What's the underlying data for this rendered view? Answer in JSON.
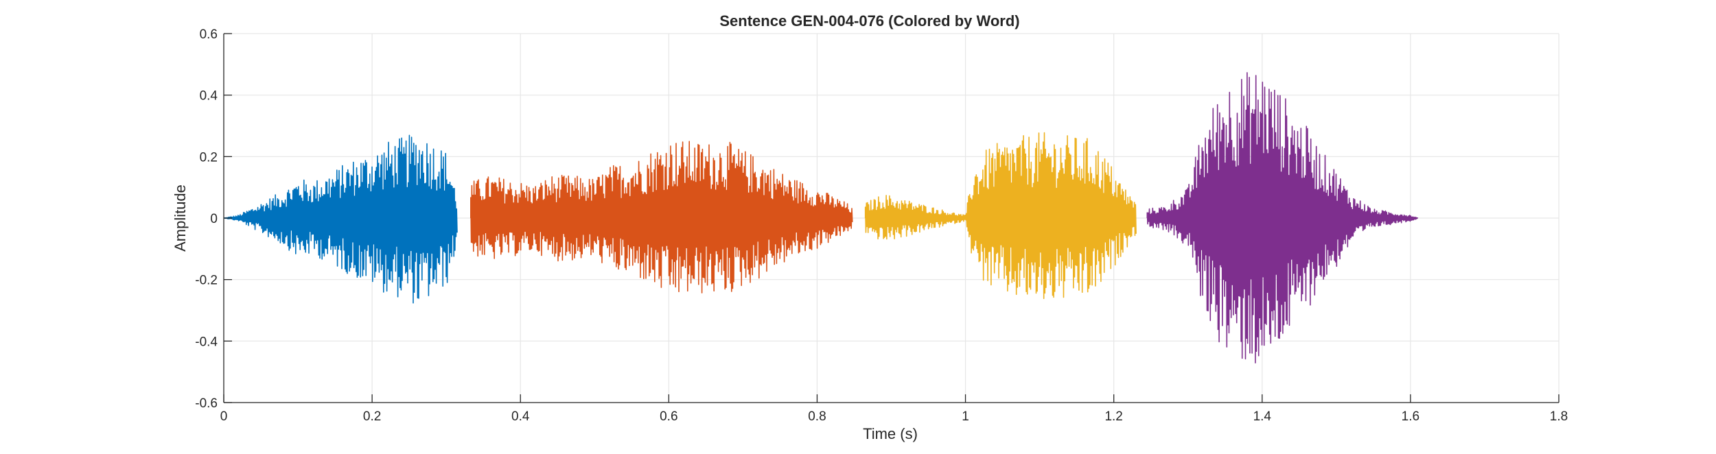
{
  "chart_data": {
    "type": "line",
    "title": "Sentence GEN-004-076 (Colored by Word)",
    "xlabel": "Time (s)",
    "ylabel": "Amplitude",
    "xlim": [
      0,
      1.8
    ],
    "ylim": [
      -0.6,
      0.6
    ],
    "xticks": [
      0,
      0.2,
      0.4,
      0.6,
      0.8,
      1,
      1.2,
      1.4,
      1.6,
      1.8
    ],
    "xtick_labels": [
      "0",
      "0.2",
      "0.4",
      "0.6",
      "0.8",
      "1",
      "1.2",
      "1.4",
      "1.6",
      "1.8"
    ],
    "yticks": [
      -0.6,
      -0.4,
      -0.2,
      0,
      0.2,
      0.4,
      0.6
    ],
    "ytick_labels": [
      "-0.6",
      "-0.4",
      "-0.2",
      "0",
      "0.2",
      "0.4",
      "0.6"
    ],
    "grid": true,
    "legend": false,
    "series": [
      {
        "color": "#0072BD",
        "start": 0.0,
        "end": 0.315,
        "envelope": [
          [
            0.0,
            0.0
          ],
          [
            0.02,
            0.01
          ],
          [
            0.05,
            0.05
          ],
          [
            0.08,
            0.09
          ],
          [
            0.1,
            0.13
          ],
          [
            0.12,
            0.12
          ],
          [
            0.15,
            0.16
          ],
          [
            0.18,
            0.2
          ],
          [
            0.2,
            0.22
          ],
          [
            0.22,
            0.25
          ],
          [
            0.25,
            0.27
          ],
          [
            0.26,
            0.29
          ],
          [
            0.28,
            0.26
          ],
          [
            0.3,
            0.22
          ],
          [
            0.31,
            0.13
          ],
          [
            0.315,
            0.05
          ]
        ]
      },
      {
        "color": "#D95319",
        "start": 0.333,
        "end": 0.848,
        "envelope": [
          [
            0.333,
            0.12
          ],
          [
            0.36,
            0.14
          ],
          [
            0.4,
            0.12
          ],
          [
            0.42,
            0.11
          ],
          [
            0.44,
            0.14
          ],
          [
            0.47,
            0.14
          ],
          [
            0.5,
            0.13
          ],
          [
            0.52,
            0.17
          ],
          [
            0.56,
            0.2
          ],
          [
            0.6,
            0.26
          ],
          [
            0.64,
            0.25
          ],
          [
            0.68,
            0.25
          ],
          [
            0.72,
            0.2
          ],
          [
            0.76,
            0.14
          ],
          [
            0.8,
            0.1
          ],
          [
            0.84,
            0.05
          ],
          [
            0.848,
            0.03
          ]
        ]
      },
      {
        "color": "#EDB120",
        "start": 0.865,
        "end": 1.23,
        "envelope": [
          [
            0.865,
            0.05
          ],
          [
            0.89,
            0.08
          ],
          [
            0.92,
            0.06
          ],
          [
            0.95,
            0.04
          ],
          [
            0.98,
            0.02
          ],
          [
            1.0,
            0.01
          ],
          [
            1.01,
            0.16
          ],
          [
            1.03,
            0.23
          ],
          [
            1.06,
            0.26
          ],
          [
            1.1,
            0.28
          ],
          [
            1.14,
            0.27
          ],
          [
            1.17,
            0.26
          ],
          [
            1.19,
            0.2
          ],
          [
            1.21,
            0.12
          ],
          [
            1.23,
            0.05
          ]
        ]
      },
      {
        "color": "#7E2F8E",
        "start": 1.245,
        "end": 1.61,
        "envelope": [
          [
            1.245,
            0.03
          ],
          [
            1.27,
            0.04
          ],
          [
            1.3,
            0.1
          ],
          [
            1.32,
            0.3
          ],
          [
            1.35,
            0.45
          ],
          [
            1.38,
            0.48
          ],
          [
            1.4,
            0.5
          ],
          [
            1.43,
            0.4
          ],
          [
            1.46,
            0.3
          ],
          [
            1.48,
            0.22
          ],
          [
            1.5,
            0.16
          ],
          [
            1.52,
            0.08
          ],
          [
            1.55,
            0.03
          ],
          [
            1.6,
            0.01
          ],
          [
            1.61,
            0.0
          ]
        ]
      }
    ]
  }
}
